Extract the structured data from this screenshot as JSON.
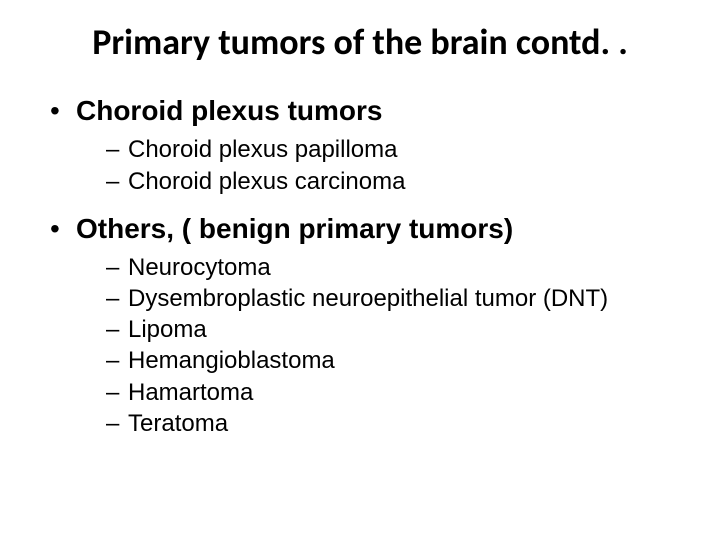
{
  "colors": {
    "background": "#ffffff",
    "text": "#000000"
  },
  "typography": {
    "title_family": "Calibri",
    "body_family": "Arial",
    "title_fontsize_pt": 27,
    "l1_fontsize_pt": 21,
    "l2_fontsize_pt": 18,
    "title_weight": 700,
    "l1_weight": 700,
    "l2_weight": 400
  },
  "bullets": {
    "level1_glyph": "•",
    "level2_glyph": "–"
  },
  "title": "Primary tumors of the brain contd. .",
  "items": [
    {
      "label": "Choroid plexus tumors",
      "children": [
        "Choroid plexus papilloma",
        "Choroid plexus carcinoma"
      ]
    },
    {
      "label": "Others, ( benign primary tumors)",
      "children": [
        "Neurocytoma",
        "Dysembroplastic neuroepithelial tumor (DNT)",
        "Lipoma",
        "Hemangioblastoma",
        "Hamartoma",
        "Teratoma"
      ]
    }
  ]
}
